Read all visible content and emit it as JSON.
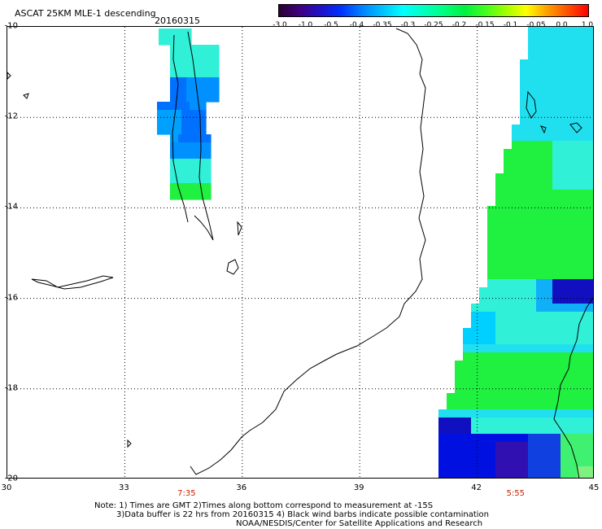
{
  "header": {
    "title": "ASCAT 25KM MLE-1 descending",
    "date": "20160315"
  },
  "colorbar": {
    "colors": [
      "#2a0030",
      "#400080",
      "#2010c8",
      "#0030ff",
      "#0080ff",
      "#00c0ff",
      "#00ffff",
      "#00ffc0",
      "#00ff80",
      "#00f040",
      "#40ff20",
      "#a0ff00",
      "#ffff00",
      "#ffa000",
      "#ff5000",
      "#ff0000"
    ],
    "tick_labels": [
      "-3.0",
      "-1.0",
      "-0.5",
      "-0.4",
      "-0.35",
      "-0.3",
      "-0.25",
      "-0.2",
      "-0.15",
      "-0.1",
      "-0.05",
      "0.0",
      "1.0"
    ]
  },
  "map": {
    "lat_labels": [
      "-10",
      "-12",
      "-14",
      "-16",
      "-18",
      "-20"
    ],
    "lon_labels": [
      "30",
      "33",
      "36",
      "39",
      "42",
      "45"
    ],
    "lat_range": [
      -20,
      -10
    ],
    "lon_range": [
      30,
      45
    ],
    "grid": true,
    "pass_times": [
      {
        "label": "7:35",
        "lon": 34.6
      },
      {
        "label": "5:55",
        "lon": 43.0
      }
    ]
  },
  "notes": {
    "line1": "Note: 1) Times are GMT 2)Times along bottom correspond to measurement at -15S",
    "line2": "3)Data buffer is 22 hrs from 20160315 4) Black wind barbs indicate possible contamination",
    "line3": "NOAA/NESDIS/Center for Satellite Applications and Research"
  }
}
